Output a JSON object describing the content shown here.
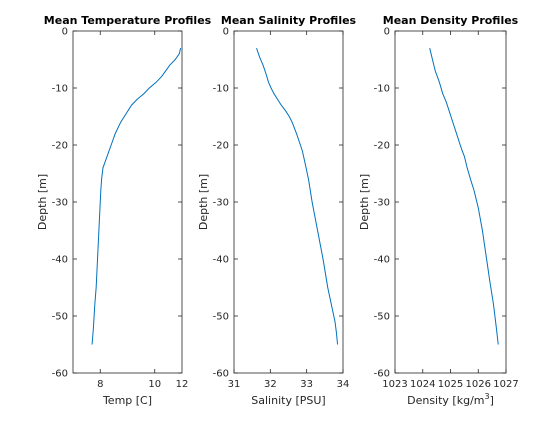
{
  "chart_data": [
    {
      "type": "line",
      "title": "Mean Temperature Profiles",
      "xlabel": "Temp [C]",
      "ylabel": "Depth [m]",
      "xlim": [
        7,
        11
      ],
      "ylim": [
        -60,
        0
      ],
      "xticks": [
        8,
        10,
        12
      ],
      "xtick_labels": [
        "8",
        "10",
        "12"
      ],
      "yticks": [
        0,
        -10,
        -20,
        -30,
        -40,
        -50,
        -60
      ],
      "ytick_labels": [
        "0",
        "-10",
        "-20",
        "-30",
        "-40",
        "-50",
        "-60"
      ],
      "grid": false,
      "series": [
        {
          "color": "#0072bd",
          "x": [
            10.95,
            10.9,
            10.75,
            10.55,
            10.4,
            10.25,
            10.05,
            9.8,
            9.6,
            9.35,
            9.15,
            8.95,
            8.75,
            8.55,
            8.4,
            8.25,
            8.1,
            8.05,
            8.02,
            8.0,
            7.98,
            7.95,
            7.9,
            7.85,
            7.8,
            7.75,
            7.7
          ],
          "y": [
            -3,
            -4,
            -5,
            -6,
            -7,
            -8,
            -9,
            -10,
            -11,
            -12,
            -13,
            -14.5,
            -16,
            -18,
            -20,
            -22,
            -24,
            -26,
            -28,
            -30,
            -32,
            -35,
            -40,
            -45,
            -48,
            -52,
            -55
          ]
        }
      ]
    },
    {
      "type": "line",
      "title": "Mean Salinity Profiles",
      "xlabel": "Salinity [PSU]",
      "ylabel": "Depth [m]",
      "xlim": [
        31,
        34
      ],
      "ylim": [
        -60,
        0
      ],
      "xticks": [
        31,
        32,
        33,
        34
      ],
      "xtick_labels": [
        "31",
        "32",
        "33",
        "34"
      ],
      "yticks": [
        0,
        -10,
        -20,
        -30,
        -40,
        -50,
        -60
      ],
      "ytick_labels": [
        "0",
        "-10",
        "-20",
        "-30",
        "-40",
        "-50",
        "-60"
      ],
      "grid": false,
      "series": [
        {
          "color": "#0072bd",
          "x": [
            31.62,
            31.7,
            31.8,
            31.88,
            31.95,
            32.02,
            32.1,
            32.2,
            32.3,
            32.42,
            32.52,
            32.6,
            32.66,
            32.72,
            32.8,
            32.88,
            32.95,
            33.05,
            33.15,
            33.3,
            33.45,
            33.58,
            33.68,
            33.78,
            33.82,
            33.85
          ],
          "y": [
            -3,
            -4.5,
            -6,
            -7.5,
            -9,
            -10,
            -11,
            -12,
            -13,
            -14,
            -15,
            -16,
            -17,
            -18,
            -19.5,
            -21,
            -23,
            -26,
            -30,
            -35,
            -40,
            -45,
            -48,
            -51,
            -53,
            -55
          ]
        }
      ]
    },
    {
      "type": "line",
      "title": "Mean Density Profiles",
      "xlabel": "Density [kg/m",
      "xlabel_superscript": "3",
      "xlabel_suffix": "]",
      "ylabel": "Depth [m]",
      "xlim": [
        1023,
        1027
      ],
      "ylim": [
        -60,
        0
      ],
      "xticks": [
        1023,
        1024,
        1025,
        1026,
        1027
      ],
      "xtick_labels": [
        "1023",
        "1024",
        "1025",
        "1026",
        "1027"
      ],
      "yticks": [
        0,
        -10,
        -20,
        -30,
        -40,
        -50,
        -60
      ],
      "ytick_labels": [
        "0",
        "-10",
        "-20",
        "-30",
        "-40",
        "-50",
        "-60"
      ],
      "grid": false,
      "series": [
        {
          "color": "#0072bd",
          "x": [
            1024.25,
            1024.35,
            1024.45,
            1024.6,
            1024.72,
            1024.85,
            1024.95,
            1025.05,
            1025.15,
            1025.25,
            1025.35,
            1025.42,
            1025.5,
            1025.6,
            1025.72,
            1025.85,
            1026.0,
            1026.15,
            1026.3,
            1026.42,
            1026.55,
            1026.65,
            1026.72
          ],
          "y": [
            -3,
            -5,
            -7,
            -9,
            -11,
            -12.5,
            -14,
            -15.5,
            -17,
            -18.5,
            -20,
            -21,
            -22,
            -24,
            -26,
            -28,
            -31,
            -35,
            -40,
            -44,
            -48,
            -52,
            -55
          ]
        }
      ]
    }
  ]
}
